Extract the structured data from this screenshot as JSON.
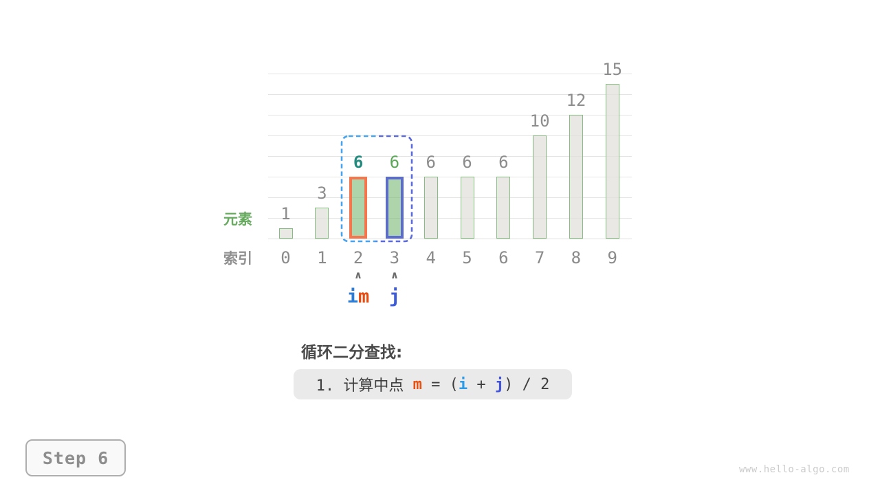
{
  "chart_data": {
    "type": "bar",
    "categories": [
      "0",
      "1",
      "2",
      "3",
      "4",
      "5",
      "6",
      "7",
      "8",
      "9"
    ],
    "values": [
      1,
      3,
      6,
      6,
      6,
      6,
      6,
      10,
      12,
      15
    ],
    "value_labels": [
      "1",
      "3",
      "6",
      "6",
      "6",
      "6",
      "6",
      "10",
      "12",
      "15"
    ],
    "title": "",
    "xlabel": "索引",
    "ylabel": "元素",
    "ylim": [
      0,
      16
    ],
    "grid": true,
    "legend": "none",
    "bar_stroke": "#85bc80",
    "bar_fill": "rgba(224,223,219,0.72)",
    "gridline_color": "#e4e4e2",
    "default_label_color": "#8c8c8c",
    "highlights": [
      {
        "index": 2,
        "border_color": "#f5764d",
        "fill": "rgba(122,186,118,0.62)",
        "label_color": "#238a7e",
        "label_bold": true,
        "pointer": "i, m"
      },
      {
        "index": 3,
        "border_color": "#5b6cce",
        "fill": "rgba(122,186,118,0.62)",
        "label_color": "#5ba758",
        "label_bold": false,
        "pointer": "j"
      }
    ],
    "search_range_box": {
      "from_index": 2,
      "to_index": 3,
      "style": "dashed",
      "left_color": "#47a3ee",
      "right_color": "#5a6ad8"
    }
  },
  "row_labels": {
    "elements": "元素",
    "elements_color": "#67aa60",
    "indices": "索引",
    "indices_color": "#8f8f8f"
  },
  "pointers": {
    "caret": "∧",
    "i_label": "i",
    "m_label": "m",
    "j_label": "j",
    "i_color": "#2b7cd9",
    "m_color": "#e84b0f",
    "j_color": "#3c5cdb"
  },
  "annotation": {
    "title": "循环二分查找:",
    "formula": {
      "bg": "#eaeaea",
      "prefix": "1. 计算中点 ",
      "m": "m",
      "mid": " = (",
      "i": "i",
      "plus": " + ",
      "j": "j",
      "suffix": ") / 2",
      "m_color": "#e8500f",
      "i_color": "#2d9ce8",
      "j_color": "#4053d9"
    }
  },
  "step": {
    "label": "Step 6"
  },
  "watermark": "www.hello-algo.com"
}
